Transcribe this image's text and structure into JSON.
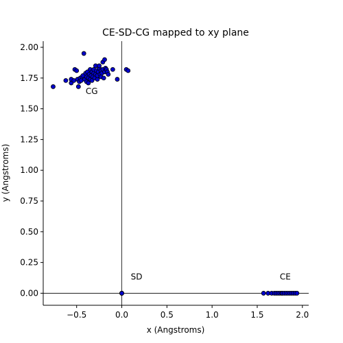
{
  "chart_data": {
    "type": "scatter",
    "title": "CE-SD-CG mapped to xy plane",
    "xlabel": "x (Angstroms)",
    "ylabel": "y (Angstroms)",
    "xlim": [
      -0.87,
      2.07
    ],
    "ylim": [
      -0.098,
      2.05
    ],
    "xticks": [
      -0.5,
      0.0,
      0.5,
      1.0,
      1.5,
      2.0
    ],
    "xtick_labels": [
      "−0.5",
      "0.0",
      "0.5",
      "1.0",
      "1.5",
      "2.0"
    ],
    "yticks": [
      0.0,
      0.25,
      0.5,
      0.75,
      1.0,
      1.25,
      1.5,
      1.75,
      2.0
    ],
    "ytick_labels": [
      "0.00",
      "0.25",
      "0.50",
      "0.75",
      "1.00",
      "1.25",
      "1.50",
      "1.75",
      "2.00"
    ],
    "grid": false,
    "marker_color": "#0000cc",
    "marker_edge_color": "#000000",
    "reference_lines": {
      "x": 0,
      "y": 0,
      "color": "#000000"
    },
    "annotations": [
      {
        "text": "CG",
        "x": -0.4,
        "y": 1.62
      },
      {
        "text": "SD",
        "x": 0.1,
        "y": 0.11
      },
      {
        "text": "CE",
        "x": 1.75,
        "y": 0.11
      }
    ],
    "series": [
      {
        "points": [
          [
            -0.76,
            1.68
          ],
          [
            -0.62,
            1.73
          ],
          [
            -0.56,
            1.71
          ],
          [
            -0.56,
            1.74
          ],
          [
            -0.53,
            1.73
          ],
          [
            -0.52,
            1.82
          ],
          [
            -0.5,
            1.81
          ],
          [
            -0.49,
            1.74
          ],
          [
            -0.48,
            1.68
          ],
          [
            -0.47,
            1.72
          ],
          [
            -0.46,
            1.75
          ],
          [
            -0.45,
            1.73
          ],
          [
            -0.44,
            1.76
          ],
          [
            -0.43,
            1.77
          ],
          [
            -0.42,
            1.95
          ],
          [
            -0.41,
            1.74
          ],
          [
            -0.4,
            1.79
          ],
          [
            -0.39,
            1.72
          ],
          [
            -0.39,
            1.76
          ],
          [
            -0.38,
            1.8
          ],
          [
            -0.37,
            1.71
          ],
          [
            -0.37,
            1.75
          ],
          [
            -0.36,
            1.78
          ],
          [
            -0.35,
            1.82
          ],
          [
            -0.35,
            1.74
          ],
          [
            -0.34,
            1.77
          ],
          [
            -0.33,
            1.8
          ],
          [
            -0.33,
            1.73
          ],
          [
            -0.32,
            1.76
          ],
          [
            -0.31,
            1.79
          ],
          [
            -0.31,
            1.82
          ],
          [
            -0.3,
            1.75
          ],
          [
            -0.29,
            1.78
          ],
          [
            -0.29,
            1.85
          ],
          [
            -0.28,
            1.81
          ],
          [
            -0.27,
            1.74
          ],
          [
            -0.27,
            1.77
          ],
          [
            -0.26,
            1.8
          ],
          [
            -0.25,
            1.83
          ],
          [
            -0.25,
            1.85
          ],
          [
            -0.24,
            1.78
          ],
          [
            -0.23,
            1.81
          ],
          [
            -0.23,
            1.76
          ],
          [
            -0.22,
            1.79
          ],
          [
            -0.21,
            1.88
          ],
          [
            -0.21,
            1.82
          ],
          [
            -0.2,
            1.75
          ],
          [
            -0.19,
            1.8
          ],
          [
            -0.19,
            1.9
          ],
          [
            -0.18,
            1.83
          ],
          [
            -0.17,
            1.82
          ],
          [
            -0.16,
            1.8
          ],
          [
            -0.15,
            1.78
          ],
          [
            -0.1,
            1.82
          ],
          [
            -0.05,
            1.74
          ],
          [
            0.05,
            1.82
          ],
          [
            0.07,
            1.81
          ]
        ]
      },
      {
        "points": [
          [
            0.0,
            0.0
          ],
          [
            0.0,
            0.0
          ],
          [
            0.0,
            0.0
          ],
          [
            0.0,
            0.0
          ]
        ]
      },
      {
        "points": [
          [
            1.57,
            0.0
          ],
          [
            1.62,
            0.0
          ],
          [
            1.66,
            0.0
          ],
          [
            1.69,
            0.0
          ],
          [
            1.71,
            0.0
          ],
          [
            1.73,
            0.0
          ],
          [
            1.75,
            0.0
          ],
          [
            1.77,
            0.0
          ],
          [
            1.78,
            0.0
          ],
          [
            1.8,
            0.0
          ],
          [
            1.82,
            0.0
          ],
          [
            1.84,
            0.0
          ],
          [
            1.86,
            0.0
          ],
          [
            1.88,
            0.0
          ],
          [
            1.9,
            0.0
          ],
          [
            1.92,
            0.0
          ],
          [
            1.94,
            0.0
          ]
        ]
      }
    ]
  }
}
